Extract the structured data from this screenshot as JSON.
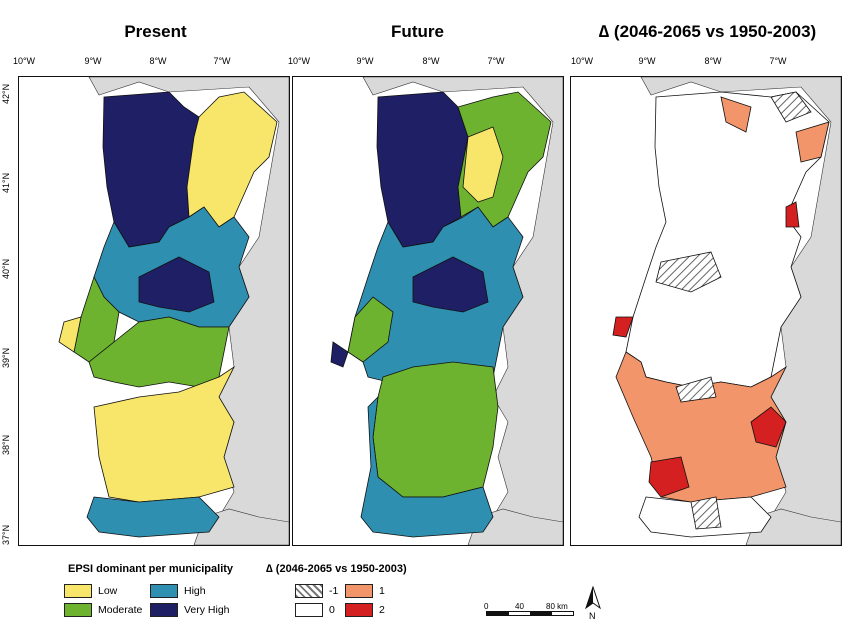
{
  "panels": [
    {
      "title": "Present"
    },
    {
      "title": "Future"
    },
    {
      "title": "∆ (2046-2065 vs 1950-2003)"
    }
  ],
  "x_ticks": [
    "10°W",
    "9°W",
    "8°W",
    "7°W"
  ],
  "y_ticks": [
    "42°N",
    "41°N",
    "40°N",
    "39°N",
    "38°N",
    "37°N"
  ],
  "legend_epsi": {
    "title": "EPSI dominant per municipality",
    "items": [
      {
        "label": "Low",
        "color": "#f7e66a"
      },
      {
        "label": "High",
        "color": "#2e8fb0"
      },
      {
        "label": "Moderate",
        "color": "#6db32f"
      },
      {
        "label": "Very High",
        "color": "#1f1f66"
      }
    ]
  },
  "legend_delta": {
    "title": "∆ (2046-2065 vs 1950-2003)",
    "items": [
      {
        "label": "-1",
        "pattern": "hatched"
      },
      {
        "label": "1",
        "color": "#f2956a"
      },
      {
        "label": "0",
        "color": "#ffffff"
      },
      {
        "label": "2",
        "color": "#d42020"
      }
    ]
  },
  "scale_bar": {
    "labels": [
      "0",
      "40",
      "80 km"
    ]
  },
  "north_arrow": {
    "label": "N"
  },
  "colors": {
    "spain": "#d9d9d9",
    "sea": "#ffffff",
    "border": "#111111"
  }
}
